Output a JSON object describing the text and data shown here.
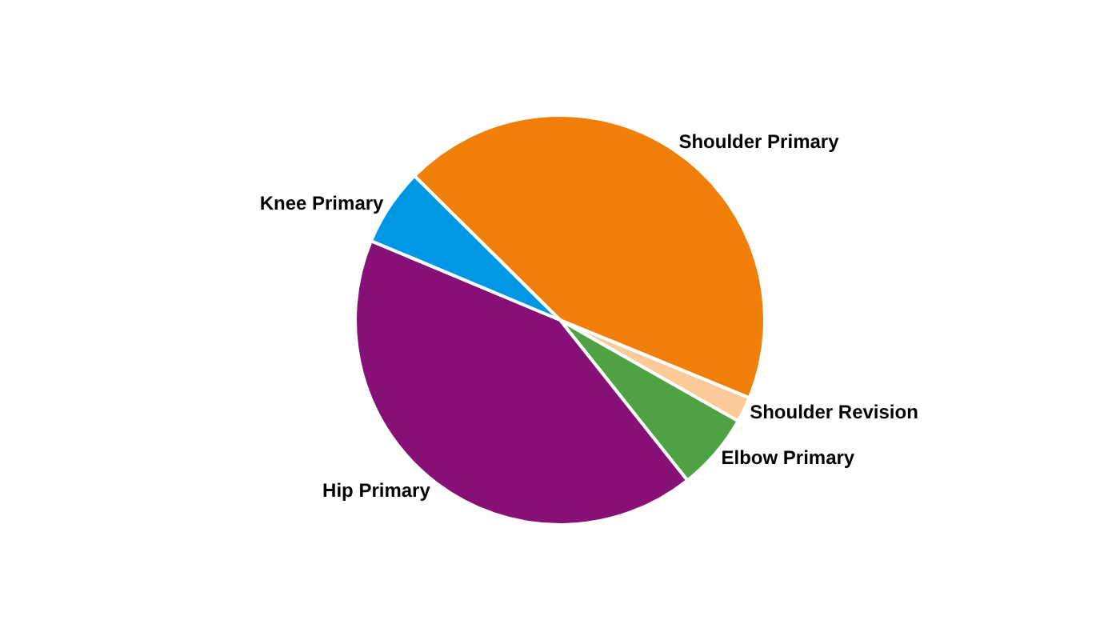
{
  "chart_data": {
    "type": "pie",
    "categories": [
      "Shoulder Primary",
      "Shoulder Revision",
      "Elbow Primary",
      "Hip Primary",
      "Knee Primary"
    ],
    "values": [
      43.8,
      2,
      6.1,
      42,
      6.1
    ],
    "colors": [
      "#f07f09",
      "#fbc99a",
      "#4ea243",
      "#861076",
      "#0096e6"
    ],
    "legend": false
  }
}
